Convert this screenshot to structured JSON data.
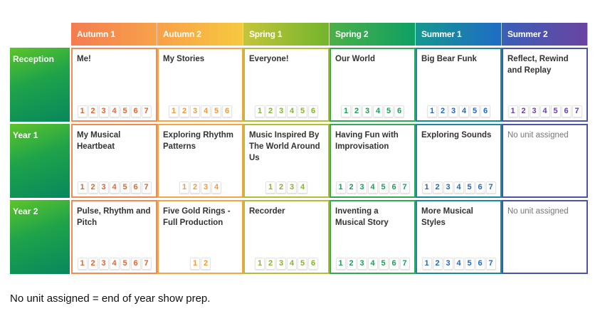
{
  "terms": [
    {
      "label": "Autumn 1",
      "gradient": [
        "#f47c50",
        "#f7a24a"
      ],
      "border": "#f58a4e",
      "num_color": "#e2652d"
    },
    {
      "label": "Autumn 2",
      "gradient": [
        "#f8a048",
        "#f6c93f"
      ],
      "border": "#f7a445",
      "num_color": "#f39a3a"
    },
    {
      "label": "Spring 1",
      "gradient": [
        "#c4c43a",
        "#72b52c"
      ],
      "border": "#b2bf35",
      "num_color": "#86b42c"
    },
    {
      "label": "Spring 2",
      "gradient": [
        "#4cb047",
        "#0fa064"
      ],
      "border": "#33a855",
      "num_color": "#1c9f58"
    },
    {
      "label": "Summer 1",
      "gradient": [
        "#16978f",
        "#1f6cc6"
      ],
      "border": "#1a8a9c",
      "num_color": "#1f68c2"
    },
    {
      "label": "Summer 2",
      "gradient": [
        "#3a5fb6",
        "#6a44a2"
      ],
      "border": "#4a53ad",
      "num_color": "#6444a8"
    }
  ],
  "rows": [
    {
      "label": "Reception",
      "units": [
        {
          "title": "Me!",
          "lessons": [
            1,
            2,
            3,
            4,
            5,
            6,
            7
          ]
        },
        {
          "title": "My Stories",
          "lessons": [
            1,
            2,
            3,
            4,
            5,
            6
          ]
        },
        {
          "title": "Everyone!",
          "lessons": [
            1,
            2,
            3,
            4,
            5,
            6
          ]
        },
        {
          "title": "Our World",
          "lessons": [
            1,
            2,
            3,
            4,
            5,
            6
          ]
        },
        {
          "title": "Big Bear Funk",
          "lessons": [
            1,
            2,
            3,
            4,
            5,
            6
          ]
        },
        {
          "title": "Reflect, Rewind and Replay",
          "lessons": [
            1,
            2,
            3,
            4,
            5,
            6,
            7
          ]
        }
      ]
    },
    {
      "label": "Year 1",
      "units": [
        {
          "title": "My Musical Heartbeat",
          "lessons": [
            1,
            2,
            3,
            4,
            5,
            6,
            7
          ]
        },
        {
          "title": "Exploring Rhythm Patterns",
          "lessons": [
            1,
            2,
            3,
            4
          ]
        },
        {
          "title": "Music Inspired By The World Around Us",
          "lessons": [
            1,
            2,
            3,
            4
          ]
        },
        {
          "title": "Having Fun with Improvisation",
          "lessons": [
            1,
            2,
            3,
            4,
            5,
            6,
            7
          ]
        },
        {
          "title": "Exploring Sounds",
          "lessons": [
            1,
            2,
            3,
            4,
            5,
            6,
            7
          ]
        },
        {
          "title": "No unit assigned",
          "lessons": [],
          "empty": true
        }
      ]
    },
    {
      "label": "Year 2",
      "units": [
        {
          "title": "Pulse, Rhythm and Pitch",
          "lessons": [
            1,
            2,
            3,
            4,
            5,
            6,
            7
          ]
        },
        {
          "title": "Five Gold Rings - Full Production",
          "lessons": [
            1,
            2
          ]
        },
        {
          "title": "Recorder",
          "lessons": [
            1,
            2,
            3,
            4,
            5,
            6
          ]
        },
        {
          "title": "Inventing a Musical Story",
          "lessons": [
            1,
            2,
            3,
            4,
            5,
            6,
            7
          ]
        },
        {
          "title": "More Musical Styles",
          "lessons": [
            1,
            2,
            3,
            4,
            5,
            6,
            7
          ]
        },
        {
          "title": "No unit assigned",
          "lessons": [],
          "empty": true
        }
      ]
    }
  ],
  "note": "No unit assigned = end of year show prep."
}
